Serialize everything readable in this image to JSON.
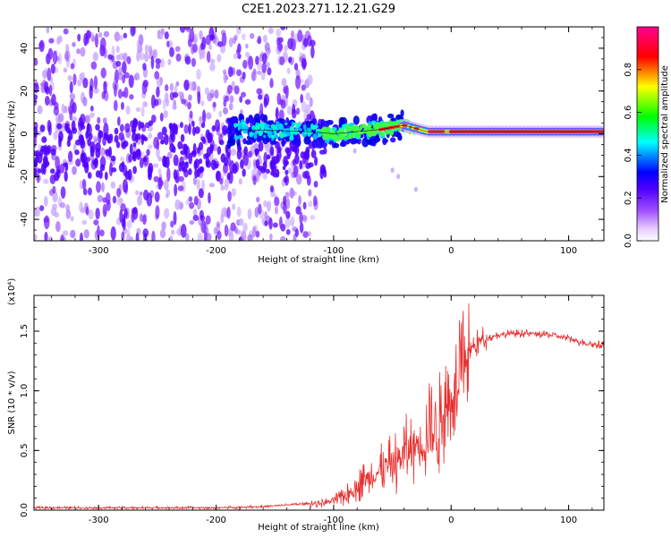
{
  "title": "C2E1.2023.271.12.21.G29",
  "chart_data": [
    {
      "type": "heatmap",
      "name": "spectrogram",
      "xlabel": "Height of straight line (km)",
      "ylabel": "Frequency (Hz)",
      "xlim": [
        -355,
        130
      ],
      "ylim": [
        -50,
        50
      ],
      "xticks": [
        -300,
        -200,
        -100,
        0,
        100
      ],
      "xtick_labels": [
        "-300",
        "-200",
        "-100",
        "0",
        "100"
      ],
      "yticks": [
        -40,
        -20,
        0,
        20,
        40
      ],
      "ytick_labels": [
        "-40",
        "-20",
        "0",
        "20",
        "40"
      ],
      "colorbar": {
        "label": "Normalized spectral amplitude",
        "range": [
          0,
          1
        ],
        "ticks": [
          0.0,
          0.2,
          0.4,
          0.6,
          0.8
        ],
        "tick_labels": [
          "0.0",
          "0.2",
          "0.4",
          "0.6",
          "0.8"
        ],
        "colors": [
          "#ffffff",
          "#b060ff",
          "#5000ff",
          "#0000ff",
          "#00ffff",
          "#00ff00",
          "#ffff00",
          "#ff0000",
          "#ff0090"
        ]
      },
      "regions": [
        {
          "x_range": [
            -355,
            -120
          ],
          "freq_range": [
            -50,
            50
          ],
          "level": "low (0.0-0.2)",
          "description_color": "#b070ff"
        },
        {
          "x_range": [
            -190,
            -90
          ],
          "freq_range": [
            -10,
            8
          ],
          "level": "0.1-0.3",
          "description_color": "#5000ff"
        },
        {
          "x_range": [
            -110,
            -40
          ],
          "freq_range": [
            -5,
            6
          ],
          "level": "0.3-0.6",
          "description_color": "#00ff80"
        },
        {
          "x_range": [
            -40,
            130
          ],
          "freq_range": [
            -1,
            3
          ],
          "level": "0.7-1.0",
          "description_color": "#ff2020"
        }
      ],
      "ridge": {
        "x": [
          -180,
          -120,
          -100,
          -60,
          -40,
          -20,
          0,
          40,
          80,
          130
        ],
        "freq": [
          2,
          1,
          0,
          2,
          4,
          1,
          1,
          1,
          1,
          1
        ]
      }
    },
    {
      "type": "line",
      "name": "snr",
      "xlabel": "Height of straight line (km)",
      "ylabel": "SNR (10 * v/v)",
      "y_multiplier_label": "(x10⁴)",
      "xlim": [
        -355,
        130
      ],
      "ylim": [
        0,
        1.8
      ],
      "xticks": [
        -300,
        -200,
        -100,
        0,
        100
      ],
      "xtick_labels": [
        "-300",
        "-200",
        "-100",
        "0",
        "100"
      ],
      "yticks": [
        0,
        0.5,
        1.0,
        1.5
      ],
      "ytick_labels": [
        "0.0",
        "0.5",
        "1.0",
        "1.5"
      ],
      "color": "#e83030",
      "series": [
        {
          "x": [
            -355,
            -300,
            -250,
            -200,
            -160,
            -130,
            -110,
            -100,
            -90,
            -80,
            -70,
            -60,
            -50,
            -40,
            -30,
            -20,
            -10,
            -5,
            0,
            5,
            8,
            10,
            15,
            20,
            25,
            30,
            40,
            50,
            60,
            70,
            80,
            90,
            100,
            110,
            120,
            130
          ],
          "y": [
            0.02,
            0.02,
            0.02,
            0.02,
            0.03,
            0.05,
            0.06,
            0.08,
            0.12,
            0.2,
            0.28,
            0.33,
            0.38,
            0.48,
            0.55,
            0.62,
            0.72,
            0.85,
            0.95,
            1.05,
            1.2,
            1.25,
            1.32,
            1.38,
            1.42,
            1.44,
            1.47,
            1.48,
            1.48,
            1.48,
            1.47,
            1.46,
            1.44,
            1.41,
            1.39,
            1.38
          ]
        }
      ]
    }
  ]
}
